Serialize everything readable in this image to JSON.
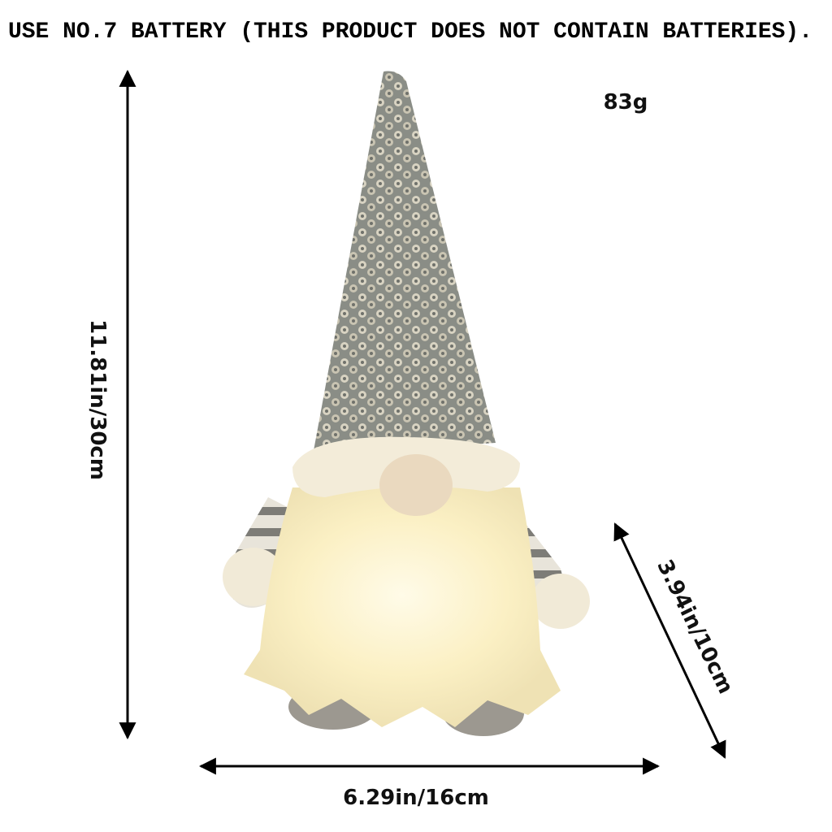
{
  "header": "USE NO.7 BATTERY (THIS PRODUCT DOES NOT CONTAIN BATTERIES).",
  "weight": "83g",
  "dimensions": {
    "height": "11.81in/30cm",
    "width": "6.29in/16cm",
    "depth": "3.94in/10cm"
  }
}
